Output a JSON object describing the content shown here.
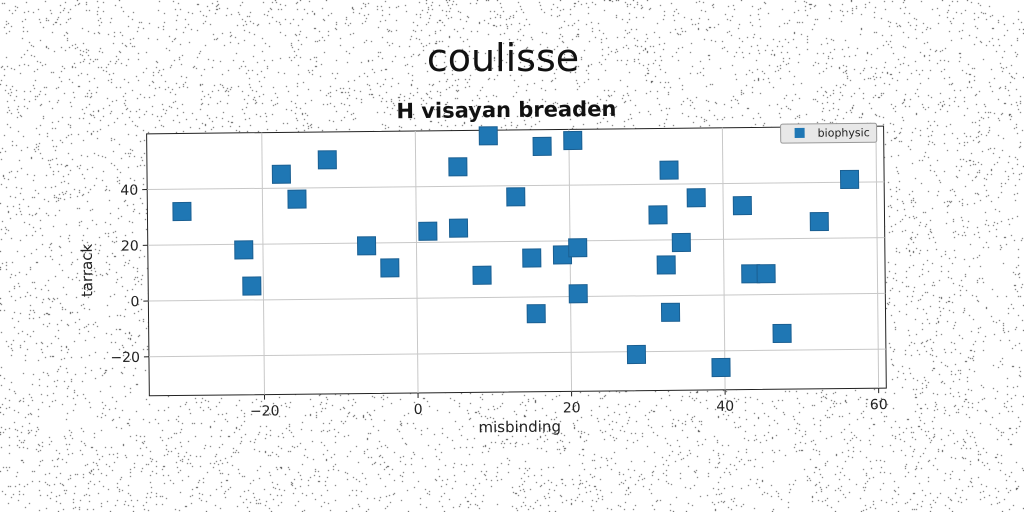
{
  "figure_title": "coulisse",
  "chart_data": {
    "type": "scatter",
    "title": "H visayan breaden",
    "xlabel": "misbinding",
    "ylabel": "tarrack",
    "xlim": [
      -35,
      61
    ],
    "ylim": [
      -34,
      60
    ],
    "xticks": [
      -20,
      0,
      20,
      40,
      60
    ],
    "yticks": [
      -20,
      0,
      20,
      40
    ],
    "xtick_labels": [
      "−20",
      "0",
      "20",
      "40",
      "60"
    ],
    "ytick_labels": [
      "−20",
      "0",
      "20",
      "40"
    ],
    "grid": true,
    "legend_position": "top-right",
    "series": [
      {
        "name": "biophysic",
        "color": "#1f77b4",
        "marker": "square",
        "points": [
          [
            -30.5,
            32
          ],
          [
            -22.5,
            18
          ],
          [
            -21.5,
            5
          ],
          [
            -17.5,
            45
          ],
          [
            -15.5,
            36
          ],
          [
            -11.5,
            50
          ],
          [
            -6.5,
            19
          ],
          [
            -3.5,
            11
          ],
          [
            1.5,
            24
          ],
          [
            5.5,
            47
          ],
          [
            5.5,
            25
          ],
          [
            8.5,
            8
          ],
          [
            9.5,
            58
          ],
          [
            13,
            36
          ],
          [
            15,
            14
          ],
          [
            15.5,
            -6
          ],
          [
            16.5,
            54
          ],
          [
            19,
            15
          ],
          [
            20.5,
            56
          ],
          [
            21,
            17.5
          ],
          [
            21,
            1
          ],
          [
            28.5,
            -21
          ],
          [
            31.5,
            29
          ],
          [
            32.5,
            11
          ],
          [
            33,
            45
          ],
          [
            33,
            -6
          ],
          [
            34.5,
            19
          ],
          [
            36.5,
            35
          ],
          [
            39.5,
            -26
          ],
          [
            42.5,
            32
          ],
          [
            43.5,
            7.5
          ],
          [
            45.5,
            7.5
          ],
          [
            47.5,
            -14
          ],
          [
            52.5,
            26
          ],
          [
            56.5,
            41
          ]
        ]
      }
    ]
  }
}
